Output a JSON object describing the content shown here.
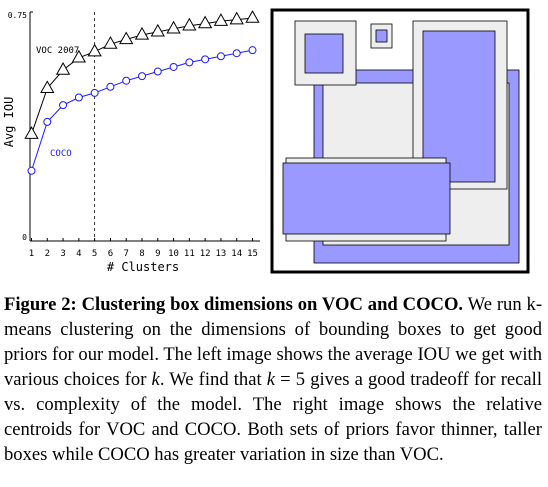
{
  "chart_data": [
    {
      "type": "line",
      "xlabel": "# Clusters",
      "ylabel": "Avg IOU",
      "x": [
        1,
        2,
        3,
        4,
        5,
        6,
        7,
        8,
        9,
        10,
        11,
        12,
        13,
        14,
        15
      ],
      "x_tick_labels": [
        "1",
        "2",
        "3",
        "4",
        "5",
        "6",
        "7",
        "8",
        "9",
        "10",
        "11",
        "12",
        "13",
        "14",
        "15"
      ],
      "y_tick_labels": [
        "0",
        "0.75"
      ],
      "ylim": [
        0,
        0.75
      ],
      "grid": false,
      "reference_line": {
        "x": 5,
        "style": "dashed"
      },
      "series": [
        {
          "name": "VOC 2007",
          "marker": "triangle",
          "color": "#000000",
          "values": [
            0.35,
            0.5,
            0.56,
            0.6,
            0.62,
            0.645,
            0.66,
            0.675,
            0.685,
            0.695,
            0.705,
            0.712,
            0.72,
            0.725,
            0.73
          ]
        },
        {
          "name": "COCO",
          "marker": "circle",
          "color": "#1a1aff",
          "values": [
            0.23,
            0.39,
            0.445,
            0.47,
            0.485,
            0.505,
            0.525,
            0.54,
            0.555,
            0.57,
            0.585,
            0.595,
            0.605,
            0.615,
            0.625
          ]
        }
      ]
    },
    {
      "type": "box_centroids",
      "legend": "relative cluster centroids",
      "colors": {
        "COCO": "#9999ff",
        "VOC": "#eeeeee"
      }
    }
  ],
  "caption": {
    "figure_label": "Figure 2:",
    "title": "Clustering box dimensions on VOC and COCO.",
    "body_1": "We run k-means clustering on the dimensions of bounding boxes to get good priors for our model. The left image shows the average IOU we get with various choices for ",
    "var_k1": "k",
    "body_2": ". We find that ",
    "var_k2": "k",
    "body_3": " = 5 gives a good tradeoff for recall vs. complexity of the model. The right image shows the relative centroids for VOC and COCO. Both sets of priors favor thinner, taller boxes while COCO has greater variation in size than VOC."
  }
}
